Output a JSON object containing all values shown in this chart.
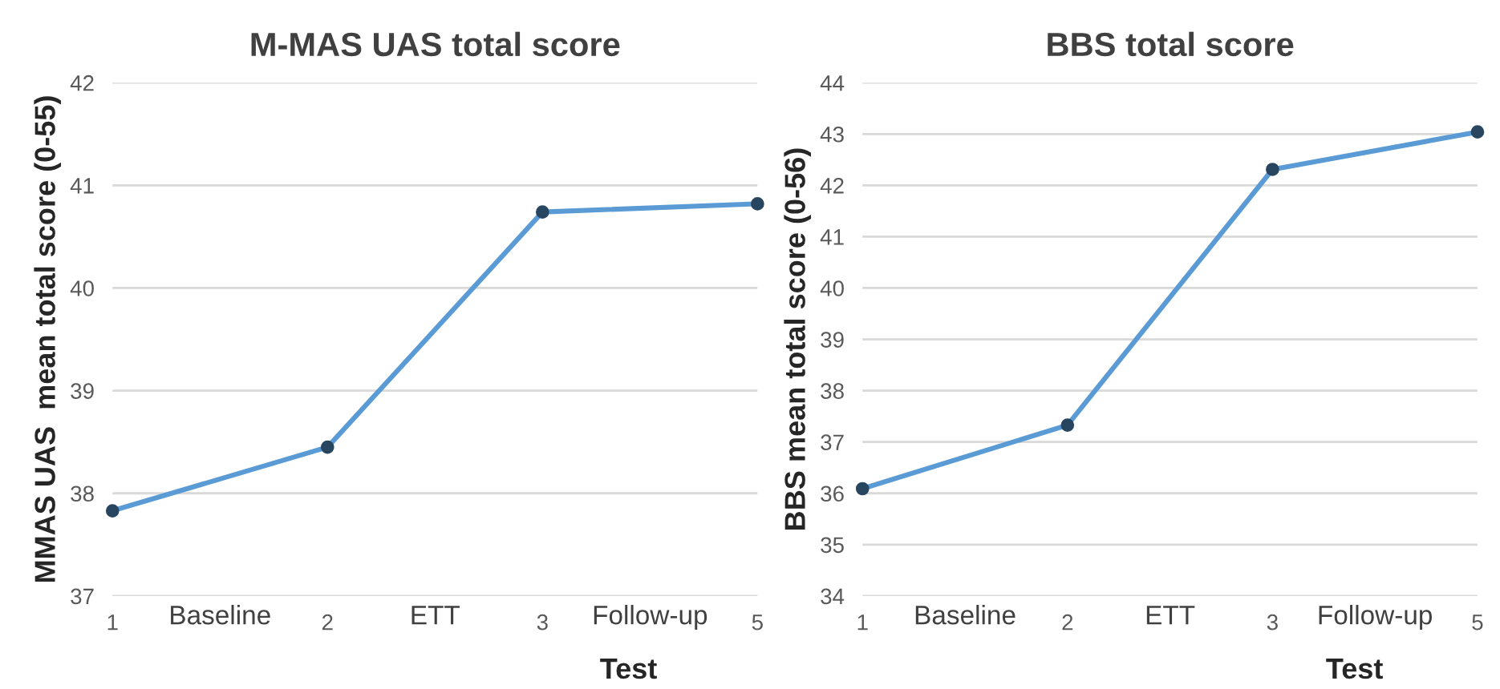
{
  "chart_data": [
    {
      "type": "line",
      "title": "M-MAS UAS total score",
      "xlabel": "Test",
      "ylabel": "MMAS UAS  mean total score (0-55)",
      "categories": [
        "1",
        "2",
        "3",
        "5"
      ],
      "series": [
        {
          "color": "#5b9bd5",
          "values": [
            37.83,
            38.45,
            40.74,
            40.82
          ]
        }
      ],
      "ylim": [
        37,
        42
      ],
      "yticks": [
        37,
        38,
        39,
        40,
        41,
        42
      ],
      "grid": "y",
      "marker": "circle",
      "line_style": "solid",
      "legend": false,
      "annotations": [
        "Baseline",
        "ETT",
        "Follow-up"
      ]
    },
    {
      "type": "line",
      "title": "BBS total score",
      "xlabel": "Test",
      "ylabel": "BBS mean total score (0-56)",
      "categories": [
        "1",
        "2",
        "3",
        "5"
      ],
      "series": [
        {
          "color": "#5b9bd5",
          "values": [
            36.09,
            37.33,
            42.31,
            43.04
          ]
        }
      ],
      "ylim": [
        34,
        44
      ],
      "yticks": [
        34,
        35,
        36,
        37,
        38,
        39,
        40,
        41,
        42,
        43,
        44
      ],
      "grid": "y",
      "marker": "circle",
      "line_style": "solid",
      "legend": false,
      "annotations": [
        "Baseline",
        "ETT",
        "Follow-up"
      ]
    }
  ]
}
